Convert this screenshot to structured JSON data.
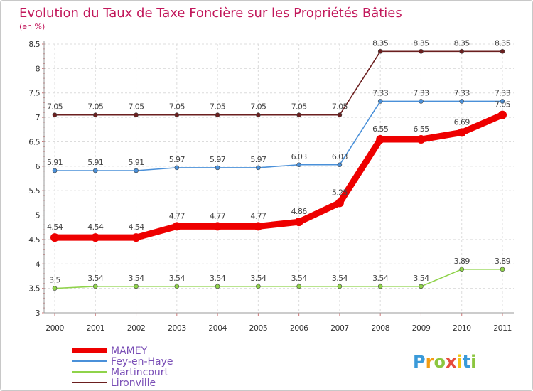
{
  "chart_data": {
    "type": "line",
    "title": "Evolution du Taux de Taxe Foncière sur les Propriétés Bâties",
    "subtitle": "(en %)",
    "x": [
      "2000",
      "2001",
      "2002",
      "2003",
      "2004",
      "2005",
      "2006",
      "2007",
      "2008",
      "2009",
      "2010",
      "2011"
    ],
    "ylim": [
      3,
      8.5
    ],
    "yticks": [
      "3",
      "3.5",
      "4",
      "4.5",
      "5",
      "5.5",
      "6",
      "6.5",
      "7",
      "7.5",
      "8",
      "8.5"
    ],
    "series": [
      {
        "name": "MAMEY",
        "color": "#ee0000",
        "values": [
          4.54,
          4.54,
          4.54,
          4.77,
          4.77,
          4.77,
          4.86,
          5.25,
          6.55,
          6.55,
          6.69,
          7.05
        ],
        "labels": [
          "4.54",
          "4.54",
          "4.54",
          "4.77",
          "4.77",
          "4.77",
          "4.86",
          "5.25",
          "6.55",
          "6.55",
          "6.69",
          "7.05"
        ]
      },
      {
        "name": "Fey-en-Haye",
        "color": "#4a90d9",
        "values": [
          5.91,
          5.91,
          5.91,
          5.97,
          5.97,
          5.97,
          6.03,
          6.03,
          7.33,
          7.33,
          7.33,
          7.33
        ],
        "labels": [
          "5.91",
          "5.91",
          "5.91",
          "5.97",
          "5.97",
          "5.97",
          "6.03",
          "6.03",
          "7.33",
          "7.33",
          "7.33",
          "7.33"
        ]
      },
      {
        "name": "Martincourt",
        "color": "#8fd34a",
        "values": [
          3.5,
          3.54,
          3.54,
          3.54,
          3.54,
          3.54,
          3.54,
          3.54,
          3.54,
          3.54,
          3.89,
          3.89
        ],
        "labels": [
          "3.5",
          "3.54",
          "3.54",
          "3.54",
          "3.54",
          "3.54",
          "3.54",
          "3.54",
          "3.54",
          "3.54",
          "3.89",
          "3.89"
        ]
      },
      {
        "name": "Lironville",
        "color": "#6b1f1f",
        "values": [
          7.05,
          7.05,
          7.05,
          7.05,
          7.05,
          7.05,
          7.05,
          7.05,
          8.35,
          8.35,
          8.35,
          8.35
        ],
        "labels": [
          "7.05",
          "7.05",
          "7.05",
          "7.05",
          "7.05",
          "7.05",
          "7.05",
          "7.05",
          "8.35",
          "8.35",
          "8.35",
          "8.35"
        ]
      }
    ],
    "legend_position": "bottom-left",
    "grid": true
  },
  "logo": {
    "letters": [
      "P",
      "r",
      "o",
      "x",
      "i",
      "t",
      "i"
    ],
    "colors": [
      "#3a9ad9",
      "#f39c12",
      "#8cc63f",
      "#e74c3c",
      "#f1c40f",
      "#3a9ad9",
      "#8cc63f"
    ]
  }
}
